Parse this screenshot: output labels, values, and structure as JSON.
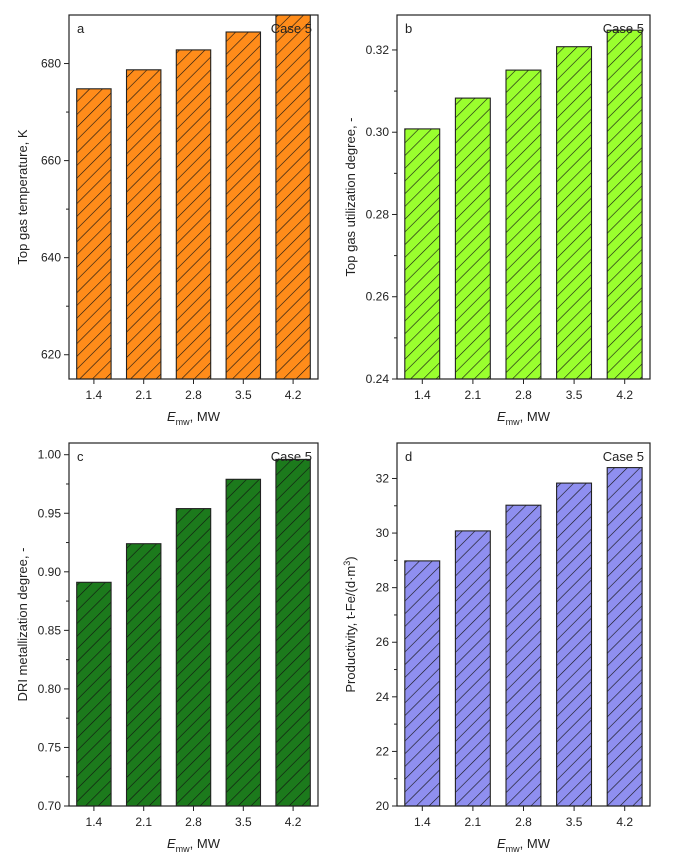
{
  "figure": {
    "x_unit": "MW",
    "x_symbol_main": "E",
    "x_symbol_sub": "mw"
  },
  "chart_data": [
    {
      "id": "a",
      "type": "bar",
      "panel_label": "a",
      "case_label": "Case 5",
      "title": "",
      "xlabel": "E_mw, MW",
      "ylabel": "Top gas temperature, K",
      "categories": [
        "1.4",
        "2.1",
        "2.8",
        "3.5",
        "4.2"
      ],
      "values": [
        674.8,
        678.7,
        682.8,
        686.5,
        690.0
      ],
      "ylim": [
        615,
        690
      ],
      "yticks": [
        620,
        640,
        660,
        680
      ],
      "ytick_labels": [
        "620",
        "640",
        "660",
        "680"
      ],
      "color": "#ff8c1a",
      "grid": false
    },
    {
      "id": "b",
      "type": "bar",
      "panel_label": "b",
      "case_label": "Case 5",
      "title": "",
      "xlabel": "E_mw, MW",
      "ylabel": "Top gas utilization degree, -",
      "categories": [
        "1.4",
        "2.1",
        "2.8",
        "3.5",
        "4.2"
      ],
      "values": [
        0.3008,
        0.3083,
        0.3151,
        0.3208,
        0.3248
      ],
      "ylim": [
        0.24,
        0.3285
      ],
      "yticks": [
        0.24,
        0.26,
        0.28,
        0.3,
        0.32
      ],
      "ytick_labels": [
        "0.24",
        "0.26",
        "0.28",
        "0.30",
        "0.32"
      ],
      "color": "#9aff2e",
      "grid": false
    },
    {
      "id": "c",
      "type": "bar",
      "panel_label": "c",
      "case_label": "Case 5",
      "title": "",
      "xlabel": "E_mw, MW",
      "ylabel": "DRI metallization degree, -",
      "categories": [
        "1.4",
        "2.1",
        "2.8",
        "3.5",
        "4.2"
      ],
      "values": [
        0.891,
        0.924,
        0.954,
        0.979,
        0.996
      ],
      "ylim": [
        0.7,
        1.01
      ],
      "yticks": [
        0.7,
        0.75,
        0.8,
        0.85,
        0.9,
        0.95,
        1.0
      ],
      "ytick_labels": [
        "0.70",
        "0.75",
        "0.80",
        "0.85",
        "0.90",
        "0.95",
        "1.00"
      ],
      "color": "#1c7a1c",
      "grid": false
    },
    {
      "id": "d",
      "type": "bar",
      "panel_label": "d",
      "case_label": "Case 5",
      "title": "",
      "xlabel": "E_mw, MW",
      "ylabel": "Productivity, t-Fe/(d·m3)",
      "ylabel_main": "Productivity, t-Fe/(d·m",
      "ylabel_sup": "3",
      "ylabel_end": ")",
      "categories": [
        "1.4",
        "2.1",
        "2.8",
        "3.5",
        "4.2"
      ],
      "values": [
        28.98,
        30.08,
        31.02,
        31.83,
        32.4
      ],
      "ylim": [
        20,
        33.3
      ],
      "yticks": [
        20,
        22,
        24,
        26,
        28,
        30,
        32
      ],
      "ytick_labels": [
        "20",
        "22",
        "24",
        "26",
        "28",
        "30",
        "32"
      ],
      "color": "#8f8ff0",
      "grid": false
    }
  ]
}
